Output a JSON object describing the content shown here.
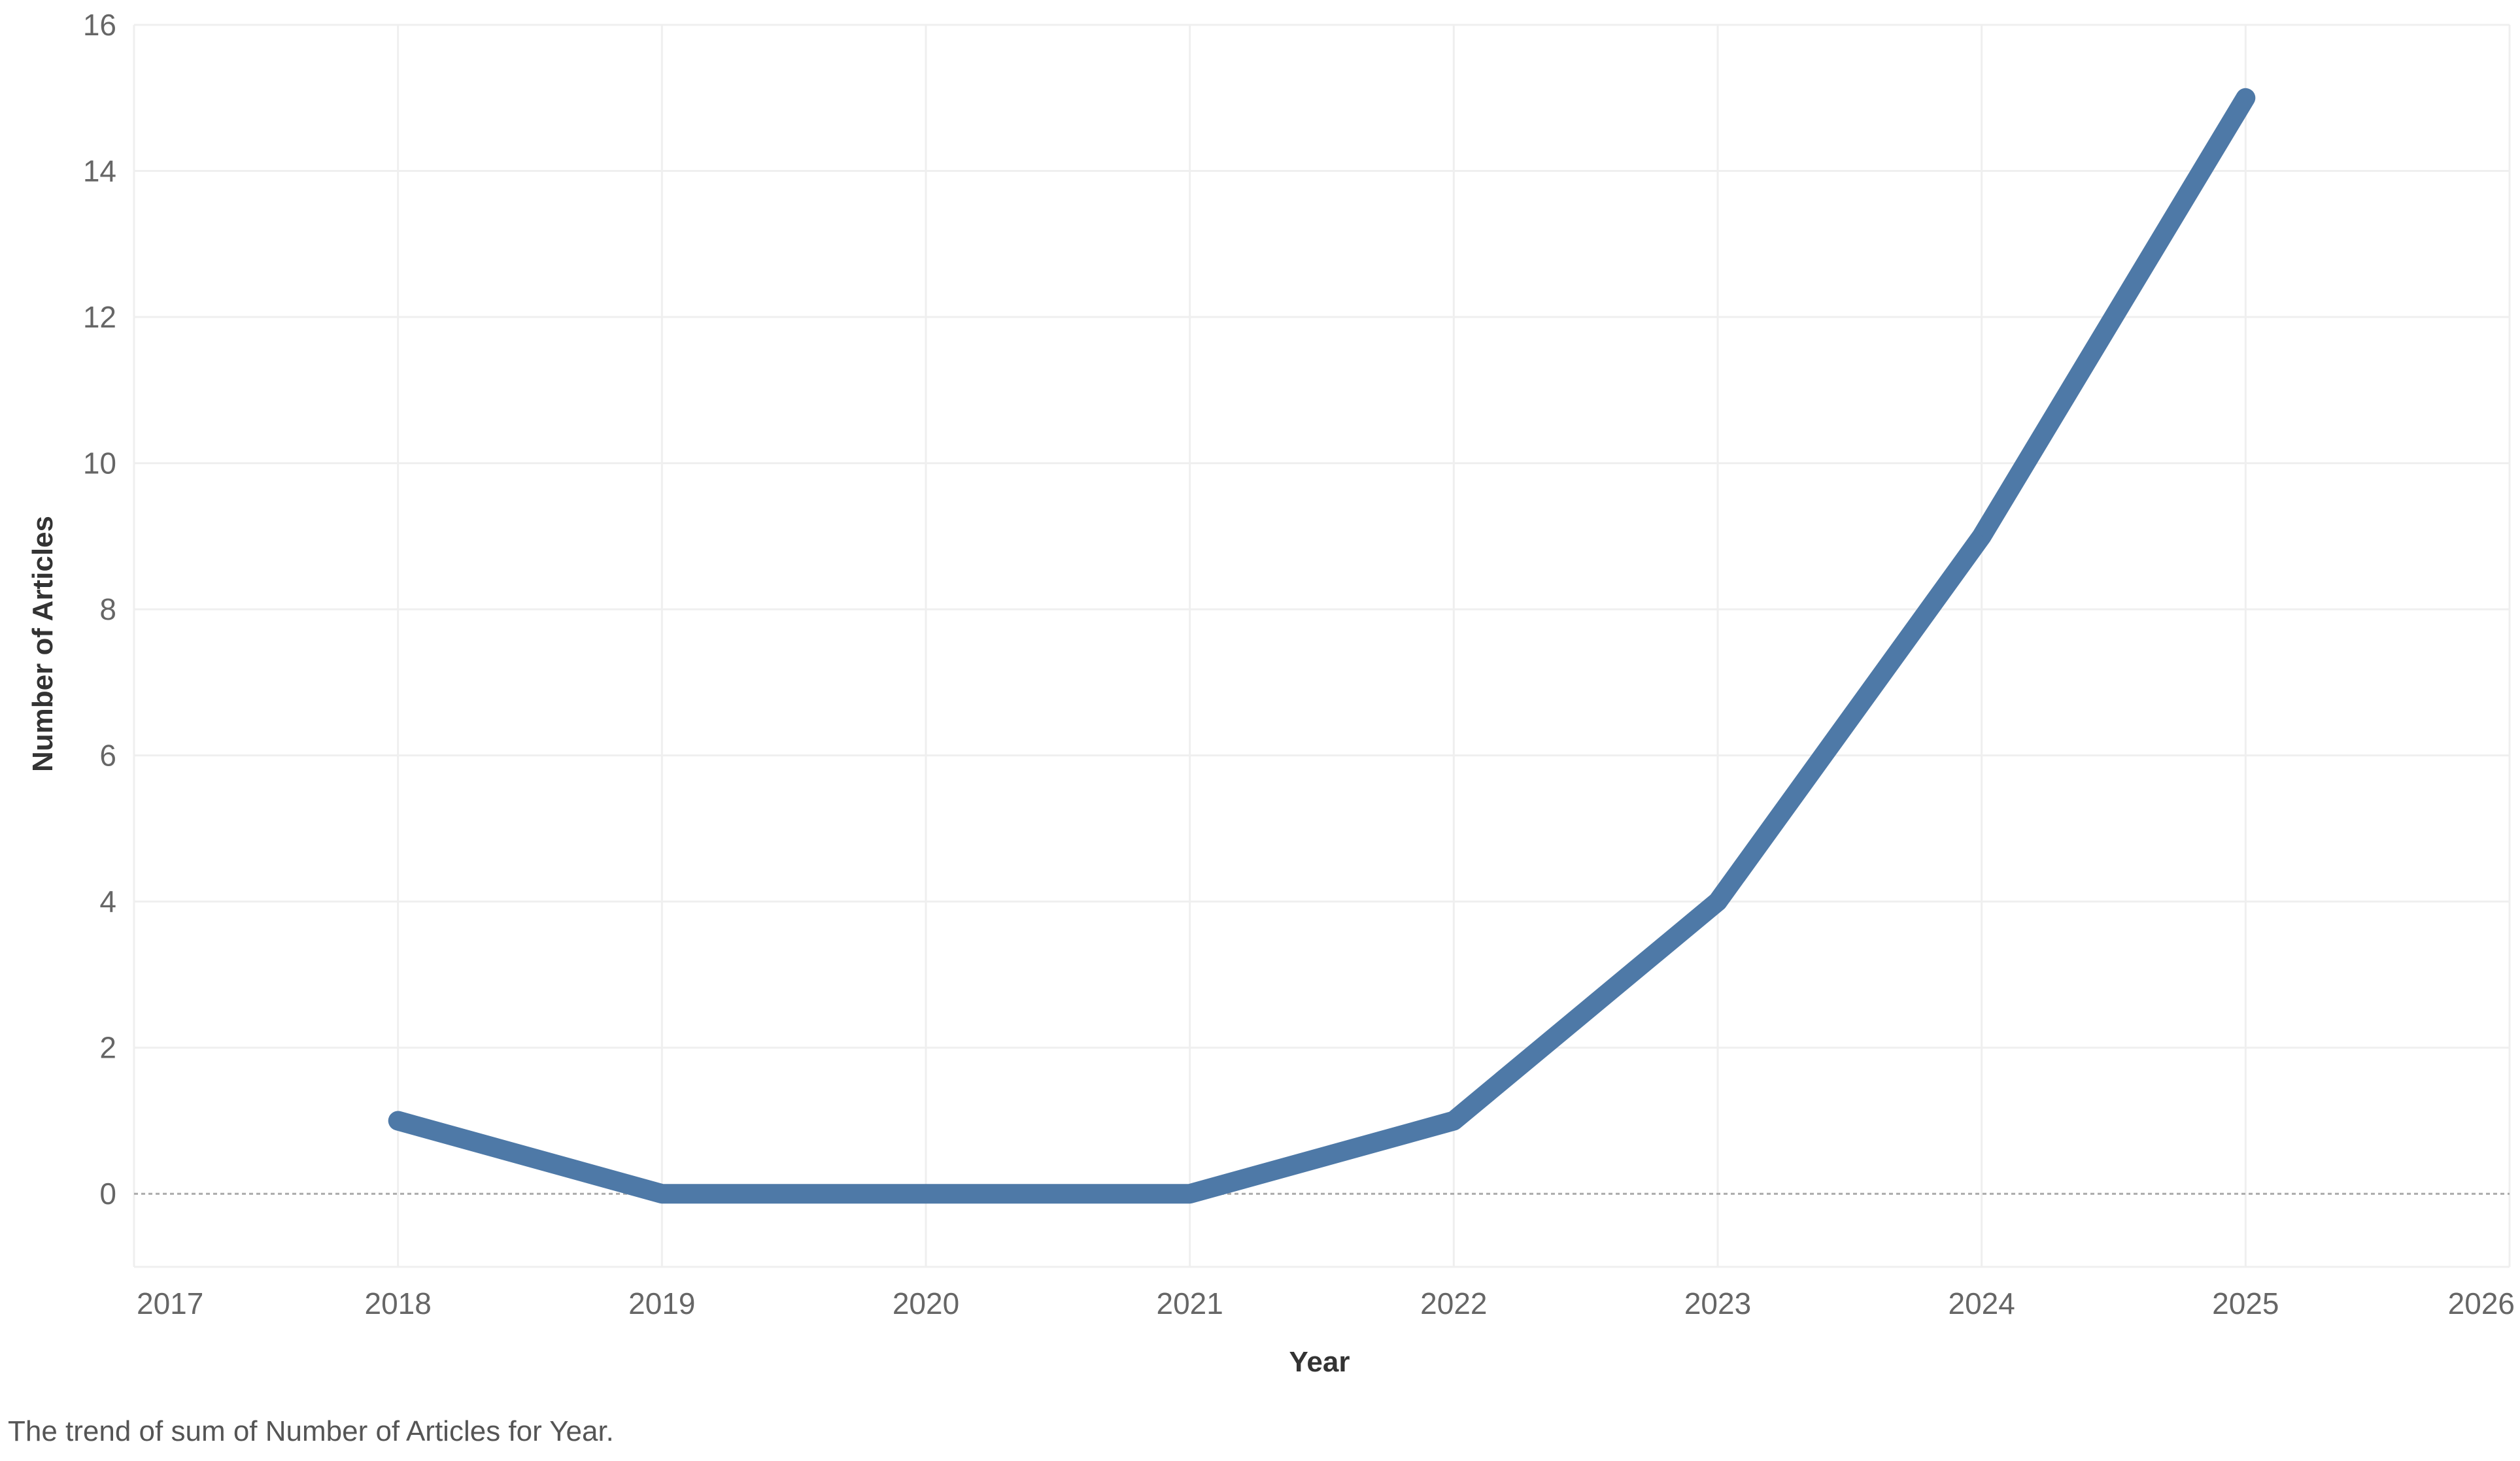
{
  "chart_data": {
    "type": "line",
    "title": "",
    "xlabel": "Year",
    "ylabel": "Number of Articles",
    "xlim": [
      2017,
      2026
    ],
    "ylim": [
      -1,
      16
    ],
    "x_ticks": [
      2017,
      2018,
      2019,
      2020,
      2021,
      2022,
      2023,
      2024,
      2025,
      2026
    ],
    "y_ticks": [
      0,
      2,
      4,
      6,
      8,
      10,
      12,
      14,
      16
    ],
    "grid": true,
    "zero_line": "dotted",
    "series": [
      {
        "x": [
          2018,
          2019,
          2020,
          2021,
          2022,
          2023,
          2024,
          2025
        ],
        "y": [
          1,
          0,
          0,
          0,
          1,
          4,
          9,
          15
        ],
        "color": "#4e79a7"
      }
    ]
  },
  "caption": "The trend of sum of Number of Articles for Year."
}
